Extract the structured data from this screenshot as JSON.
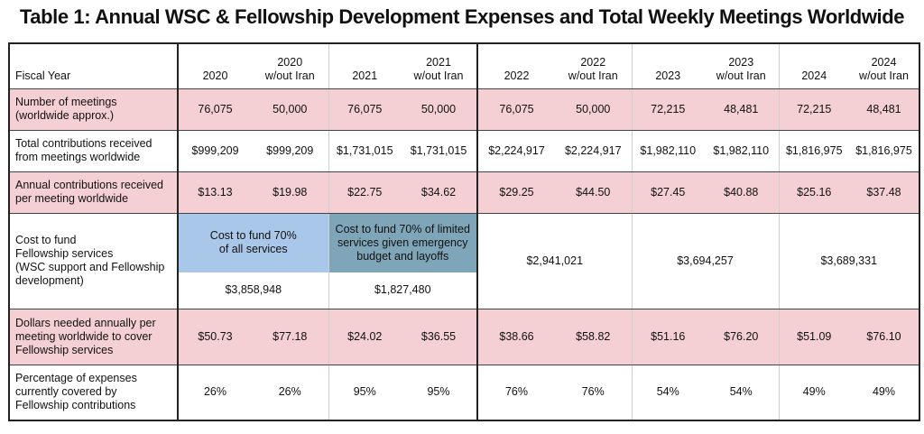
{
  "title": "Table 1: Annual WSC & Fellowship Development Expenses and Total Weekly Meetings Worldwide",
  "header": {
    "fiscal_year": "Fiscal Year",
    "cols": [
      "2020",
      "2020\nw/out Iran",
      "2021",
      "2021\nw/out Iran",
      "2022",
      "2022\nw/out Iran",
      "2023",
      "2023\nw/out Iran",
      "2024",
      "2024\nw/out Iran"
    ]
  },
  "rows": {
    "meetings": {
      "label": "Number of meetings\n(worldwide approx.)",
      "values": [
        "76,075",
        "50,000",
        "76,075",
        "50,000",
        "76,075",
        "50,000",
        "72,215",
        "48,481",
        "72,215",
        "48,481"
      ]
    },
    "contributions": {
      "label": "Total contributions received\nfrom meetings worldwide",
      "values": [
        "$999,209",
        "$999,209",
        "$1,731,015",
        "$1,731,015",
        "$2,224,917",
        "$2,224,917",
        "$1,982,110",
        "$1,982,110",
        "$1,816,975",
        "$1,816,975"
      ]
    },
    "per_meeting": {
      "label": "Annual contributions received\nper meeting worldwide",
      "values": [
        "$13.13",
        "$19.98",
        "$22.75",
        "$34.62",
        "$29.25",
        "$44.50",
        "$27.45",
        "$40.88",
        "$25.16",
        "$37.48"
      ]
    },
    "cost": {
      "label": "Cost to fund\nFellowship services\n(WSC support and Fellowship\ndevelopment)",
      "note_2020": "Cost to fund 70%\nof all services",
      "note_2021": "Cost to fund 70% of limited\nservices given emergency\nbudget and layoffs",
      "values": [
        "$3,858,948",
        "$1,827,480",
        "$2,941,021",
        "$3,694,257",
        "$3,689,331"
      ]
    },
    "needed": {
      "label": "Dollars needed annually per\nmeeting worldwide to cover\nFellowship services",
      "values": [
        "$50.73",
        "$77.18",
        "$24.02",
        "$36.55",
        "$38.66",
        "$58.82",
        "$51.16",
        "$76.20",
        "$51.09",
        "$76.10"
      ]
    },
    "percentage": {
      "label": "Percentage of expenses\ncurrently covered by\nFellowship contributions",
      "values": [
        "26%",
        "26%",
        "95%",
        "95%",
        "76%",
        "76%",
        "54%",
        "54%",
        "49%",
        "49%"
      ]
    }
  },
  "colors": {
    "pink": "#f4cfd3",
    "blue": "#a9c7e8",
    "teal": "#7fa6b8"
  }
}
